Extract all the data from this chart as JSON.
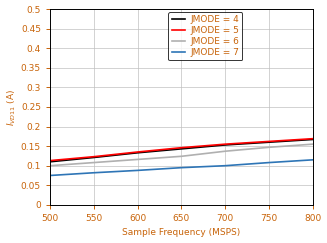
{
  "xlabel": "Sample Frequency (MSPS)",
  "ylabel": "Iᵥᴵ₁₁ (A)",
  "xlim": [
    500,
    800
  ],
  "ylim": [
    0,
    0.5
  ],
  "xticks": [
    500,
    550,
    600,
    650,
    700,
    750,
    800
  ],
  "yticks": [
    0,
    0.05,
    0.1,
    0.15,
    0.2,
    0.25,
    0.3,
    0.35,
    0.4,
    0.45,
    0.5
  ],
  "series": [
    {
      "label": "JMODE = 4",
      "color": "#000000",
      "linewidth": 1.2,
      "x": [
        500,
        550,
        600,
        650,
        700,
        750,
        800
      ],
      "y": [
        0.11,
        0.121,
        0.133,
        0.143,
        0.153,
        0.16,
        0.167
      ]
    },
    {
      "label": "JMODE = 5",
      "color": "#ff0000",
      "linewidth": 1.2,
      "x": [
        500,
        550,
        600,
        650,
        700,
        750,
        800
      ],
      "y": [
        0.113,
        0.123,
        0.135,
        0.146,
        0.155,
        0.162,
        0.169
      ]
    },
    {
      "label": "JMODE = 6",
      "color": "#b0b0b0",
      "linewidth": 1.2,
      "x": [
        500,
        550,
        600,
        650,
        700,
        750,
        800
      ],
      "y": [
        0.1,
        0.108,
        0.116,
        0.124,
        0.137,
        0.147,
        0.155
      ]
    },
    {
      "label": "JMODE = 7",
      "color": "#2e75b6",
      "linewidth": 1.2,
      "x": [
        500,
        550,
        600,
        650,
        700,
        750,
        800
      ],
      "y": [
        0.075,
        0.082,
        0.088,
        0.095,
        0.1,
        0.108,
        0.115
      ]
    }
  ],
  "grid": true,
  "font_size": 6.5,
  "tick_color": "#c8640a",
  "label_color": "#c8640a",
  "spine_color": "#000000",
  "legend_text_color": "#c8640a",
  "bg_color": "#ffffff",
  "fig_bg_color": "#ffffff"
}
